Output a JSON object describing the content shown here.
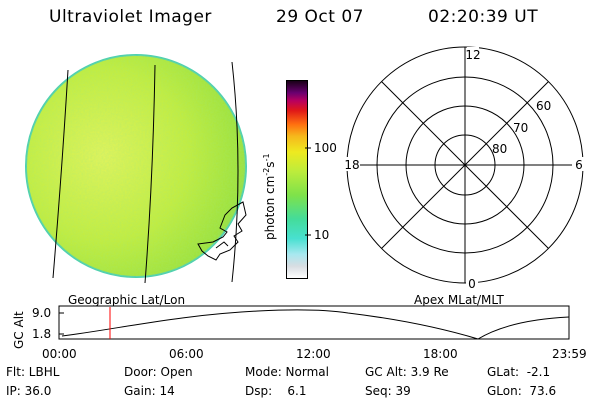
{
  "header": {
    "instrument": "Ultraviolet Imager",
    "date": "29 Oct 07",
    "time": "02:20:39 UT"
  },
  "colorbar": {
    "label": "photon cm",
    "label_sup1": "-2",
    "label_mid": "s",
    "label_sup2": "-1",
    "ticks": [
      "100",
      "10"
    ]
  },
  "polar": {
    "mlt_labels": {
      "top": "12",
      "left": "18",
      "right": "6",
      "bottom": "0"
    },
    "lat_labels": [
      "60",
      "70",
      "80"
    ]
  },
  "orbit": {
    "left_label": "Geographic Lat/Lon",
    "right_label": "Apex MLat/MLT",
    "axis_label": "GC Alt",
    "y_ticks": [
      "9.0",
      "1.8"
    ],
    "x_ticks": [
      "00:00",
      "06:00",
      "12:00",
      "18:00",
      "23:59"
    ],
    "marker_color": "#ff0000"
  },
  "status": {
    "flt": "Flt: LBHL",
    "ip": "IP: 36.0",
    "door": "Door: Open",
    "gain": "Gain: 14",
    "mode": "Mode: Normal",
    "dsp": "Dsp:    6.1",
    "gc_alt": "GC Alt: 3.9 Re",
    "seq": "Seq: 39",
    "glat": "GLat:  -2.1",
    "glon": "GLon:  73.6"
  }
}
